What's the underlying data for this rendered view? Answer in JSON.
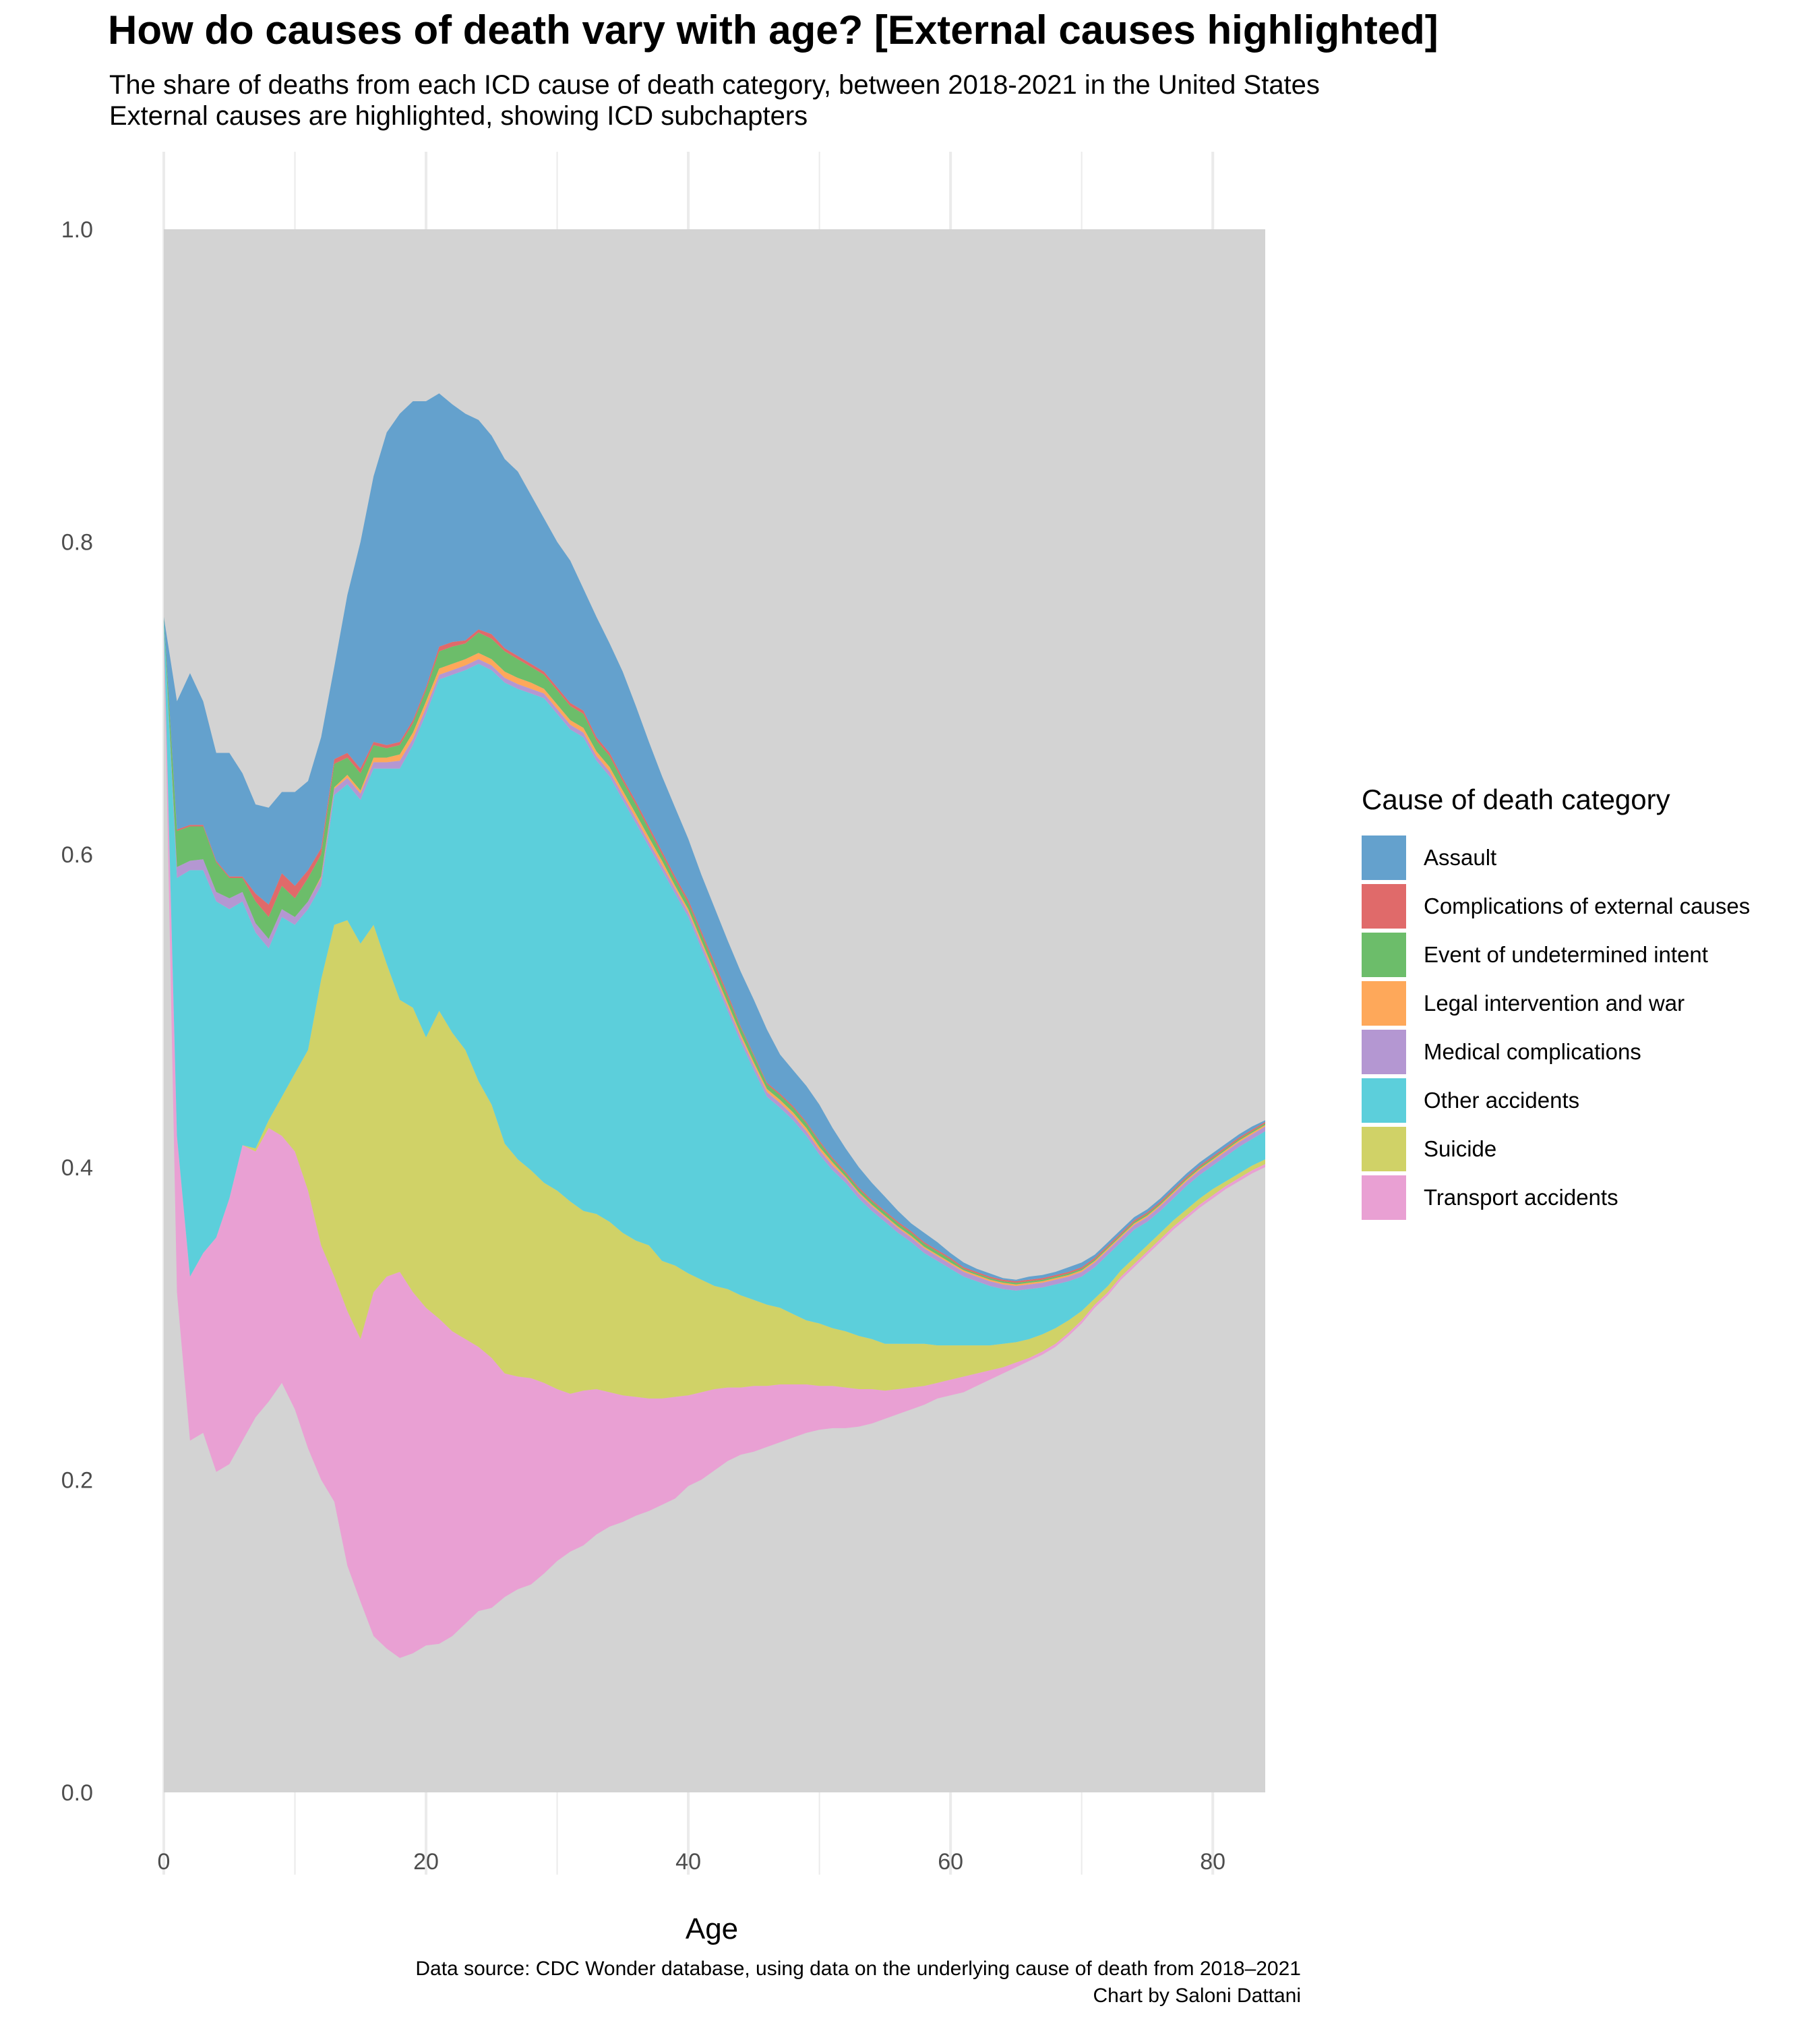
{
  "title": "How do causes of death vary with age? [External causes highlighted]",
  "subtitle_line1": "The share of deaths from each ICD cause of death category, between 2018-2021 in the United States",
  "subtitle_line2": "External causes are highlighted, showing ICD subchapters",
  "caption_line1": "Data source: CDC Wonder database, using data on the underlying cause of death from 2018–2021",
  "caption_line2": "Chart by Saloni Dattani",
  "legend": {
    "title": "Cause of death category",
    "items": [
      {
        "label": "Assault",
        "color": "#64a1cd"
      },
      {
        "label": "Complications of external causes",
        "color": "#e06a6a"
      },
      {
        "label": "Event of undetermined intent",
        "color": "#6cbd6a"
      },
      {
        "label": "Legal intervention and war",
        "color": "#fea85a"
      },
      {
        "label": "Medical complications",
        "color": "#b497d2"
      },
      {
        "label": "Other accidents",
        "color": "#5ccfdb"
      },
      {
        "label": "Suicide",
        "color": "#d0d267"
      },
      {
        "label": "Transport accidents",
        "color": "#e9a0d3"
      }
    ]
  },
  "chart_data": {
    "type": "area",
    "stacked": true,
    "xlabel": "Age",
    "ylabel": "",
    "xlim": [
      0,
      84
    ],
    "ylim": [
      0,
      1
    ],
    "x_ticks": [
      0,
      20,
      40,
      60,
      80
    ],
    "y_ticks": [
      "0.0",
      "0.2",
      "0.4",
      "0.6",
      "0.8",
      "1.0"
    ],
    "background_color": "#d3d3d3",
    "grid": true,
    "legend_position": "right",
    "note": "Values are cumulative top boundaries of each stacked band (share of deaths); bottom of Transport accidents band is the lower boundary of the highlighted area.",
    "ages": [
      0,
      1,
      2,
      3,
      4,
      5,
      6,
      7,
      8,
      9,
      10,
      11,
      12,
      13,
      14,
      15,
      16,
      17,
      18,
      19,
      20,
      21,
      22,
      23,
      24,
      25,
      26,
      27,
      28,
      29,
      30,
      31,
      32,
      33,
      34,
      35,
      36,
      37,
      38,
      39,
      40,
      41,
      42,
      43,
      44,
      45,
      46,
      47,
      48,
      49,
      50,
      51,
      52,
      53,
      54,
      55,
      56,
      57,
      58,
      59,
      60,
      61,
      62,
      63,
      64,
      65,
      66,
      67,
      68,
      69,
      70,
      71,
      72,
      73,
      74,
      75,
      76,
      77,
      78,
      79,
      80,
      81,
      82,
      83,
      84
    ],
    "base": [
      0.74,
      0.32,
      0.225,
      0.23,
      0.205,
      0.21,
      0.225,
      0.24,
      0.25,
      0.262,
      0.245,
      0.22,
      0.2,
      0.186,
      0.145,
      0.122,
      0.1,
      0.092,
      0.086,
      0.089,
      0.094,
      0.095,
      0.1,
      0.108,
      0.116,
      0.118,
      0.125,
      0.13,
      0.133,
      0.14,
      0.148,
      0.154,
      0.158,
      0.165,
      0.17,
      0.173,
      0.177,
      0.18,
      0.184,
      0.188,
      0.196,
      0.2,
      0.206,
      0.212,
      0.216,
      0.218,
      0.221,
      0.224,
      0.227,
      0.23,
      0.232,
      0.233,
      0.233,
      0.234,
      0.236,
      0.239,
      0.242,
      0.245,
      0.248,
      0.252,
      0.254,
      0.256,
      0.26,
      0.264,
      0.268,
      0.272,
      0.276,
      0.28,
      0.285,
      0.292,
      0.3,
      0.31,
      0.318,
      0.328,
      0.336,
      0.344,
      0.352,
      0.36,
      0.367,
      0.374,
      0.38,
      0.386,
      0.391,
      0.396,
      0.4
    ],
    "series": [
      {
        "name": "Transport accidents",
        "upper": [
          0.745,
          0.42,
          0.33,
          0.345,
          0.355,
          0.38,
          0.414,
          0.41,
          0.425,
          0.42,
          0.41,
          0.385,
          0.35,
          0.33,
          0.308,
          0.29,
          0.32,
          0.33,
          0.333,
          0.32,
          0.31,
          0.303,
          0.295,
          0.29,
          0.285,
          0.278,
          0.268,
          0.266,
          0.265,
          0.262,
          0.258,
          0.255,
          0.257,
          0.258,
          0.256,
          0.254,
          0.253,
          0.252,
          0.252,
          0.253,
          0.254,
          0.256,
          0.258,
          0.259,
          0.259,
          0.26,
          0.26,
          0.261,
          0.261,
          0.261,
          0.26,
          0.26,
          0.259,
          0.258,
          0.258,
          0.257,
          0.258,
          0.259,
          0.26,
          0.262,
          0.264,
          0.266,
          0.268,
          0.27,
          0.272,
          0.275,
          0.278,
          0.282,
          0.287,
          0.294,
          0.302,
          0.312,
          0.32,
          0.33,
          0.338,
          0.346,
          0.354,
          0.362,
          0.369,
          0.376,
          0.382,
          0.388,
          0.393,
          0.398,
          0.402
        ]
      },
      {
        "name": "Suicide",
        "upper": [
          0.746,
          0.42,
          0.33,
          0.345,
          0.355,
          0.38,
          0.414,
          0.412,
          0.43,
          0.445,
          0.46,
          0.475,
          0.52,
          0.555,
          0.558,
          0.543,
          0.555,
          0.53,
          0.507,
          0.502,
          0.483,
          0.5,
          0.486,
          0.475,
          0.455,
          0.44,
          0.415,
          0.405,
          0.398,
          0.39,
          0.385,
          0.378,
          0.372,
          0.37,
          0.365,
          0.358,
          0.353,
          0.35,
          0.34,
          0.337,
          0.332,
          0.328,
          0.324,
          0.322,
          0.318,
          0.315,
          0.312,
          0.31,
          0.306,
          0.302,
          0.3,
          0.297,
          0.295,
          0.292,
          0.29,
          0.287,
          0.287,
          0.287,
          0.287,
          0.286,
          0.286,
          0.286,
          0.286,
          0.286,
          0.287,
          0.288,
          0.29,
          0.293,
          0.297,
          0.302,
          0.308,
          0.316,
          0.324,
          0.334,
          0.342,
          0.35,
          0.358,
          0.366,
          0.373,
          0.38,
          0.386,
          0.391,
          0.396,
          0.401,
          0.405
        ]
      },
      {
        "name": "Other accidents",
        "upper": [
          0.75,
          0.585,
          0.59,
          0.59,
          0.57,
          0.565,
          0.57,
          0.55,
          0.54,
          0.56,
          0.555,
          0.565,
          0.58,
          0.638,
          0.645,
          0.635,
          0.655,
          0.655,
          0.655,
          0.67,
          0.69,
          0.712,
          0.715,
          0.718,
          0.722,
          0.718,
          0.71,
          0.706,
          0.703,
          0.7,
          0.69,
          0.68,
          0.675,
          0.66,
          0.65,
          0.635,
          0.62,
          0.605,
          0.59,
          0.575,
          0.56,
          0.54,
          0.52,
          0.5,
          0.48,
          0.462,
          0.445,
          0.438,
          0.43,
          0.42,
          0.408,
          0.398,
          0.39,
          0.38,
          0.372,
          0.365,
          0.358,
          0.352,
          0.345,
          0.34,
          0.335,
          0.33,
          0.327,
          0.324,
          0.322,
          0.321,
          0.322,
          0.323,
          0.325,
          0.327,
          0.33,
          0.336,
          0.344,
          0.352,
          0.36,
          0.365,
          0.372,
          0.38,
          0.388,
          0.395,
          0.401,
          0.407,
          0.413,
          0.418,
          0.423
        ]
      },
      {
        "name": "Medical complications",
        "upper": [
          0.75,
          0.592,
          0.596,
          0.597,
          0.576,
          0.572,
          0.576,
          0.556,
          0.546,
          0.565,
          0.56,
          0.57,
          0.585,
          0.642,
          0.649,
          0.639,
          0.659,
          0.659,
          0.66,
          0.674,
          0.694,
          0.715,
          0.718,
          0.721,
          0.725,
          0.721,
          0.713,
          0.709,
          0.706,
          0.703,
          0.693,
          0.683,
          0.678,
          0.663,
          0.653,
          0.638,
          0.623,
          0.608,
          0.593,
          0.578,
          0.563,
          0.543,
          0.523,
          0.503,
          0.483,
          0.465,
          0.448,
          0.441,
          0.433,
          0.423,
          0.411,
          0.401,
          0.393,
          0.383,
          0.375,
          0.368,
          0.361,
          0.355,
          0.348,
          0.343,
          0.338,
          0.333,
          0.33,
          0.327,
          0.325,
          0.324,
          0.325,
          0.326,
          0.328,
          0.33,
          0.333,
          0.339,
          0.347,
          0.355,
          0.363,
          0.368,
          0.375,
          0.383,
          0.391,
          0.398,
          0.404,
          0.41,
          0.416,
          0.421,
          0.426
        ]
      },
      {
        "name": "Legal intervention and war",
        "upper": [
          0.75,
          0.592,
          0.596,
          0.597,
          0.576,
          0.572,
          0.576,
          0.556,
          0.546,
          0.565,
          0.56,
          0.57,
          0.586,
          0.643,
          0.651,
          0.641,
          0.662,
          0.662,
          0.664,
          0.678,
          0.698,
          0.719,
          0.722,
          0.725,
          0.729,
          0.725,
          0.717,
          0.713,
          0.71,
          0.706,
          0.696,
          0.686,
          0.681,
          0.666,
          0.656,
          0.641,
          0.626,
          0.611,
          0.596,
          0.58,
          0.565,
          0.545,
          0.525,
          0.505,
          0.485,
          0.467,
          0.45,
          0.443,
          0.435,
          0.425,
          0.413,
          0.403,
          0.394,
          0.384,
          0.376,
          0.369,
          0.362,
          0.356,
          0.349,
          0.344,
          0.339,
          0.334,
          0.331,
          0.328,
          0.326,
          0.325,
          0.326,
          0.327,
          0.329,
          0.331,
          0.334,
          0.34,
          0.348,
          0.356,
          0.364,
          0.369,
          0.376,
          0.384,
          0.392,
          0.399,
          0.405,
          0.411,
          0.417,
          0.422,
          0.427
        ]
      },
      {
        "name": "Event of undetermined intent",
        "upper": [
          0.752,
          0.615,
          0.618,
          0.618,
          0.595,
          0.585,
          0.585,
          0.57,
          0.56,
          0.58,
          0.572,
          0.585,
          0.6,
          0.658,
          0.662,
          0.652,
          0.67,
          0.668,
          0.67,
          0.684,
          0.705,
          0.73,
          0.733,
          0.735,
          0.742,
          0.738,
          0.73,
          0.725,
          0.72,
          0.715,
          0.705,
          0.695,
          0.69,
          0.673,
          0.663,
          0.647,
          0.632,
          0.616,
          0.6,
          0.584,
          0.569,
          0.549,
          0.529,
          0.509,
          0.489,
          0.471,
          0.453,
          0.446,
          0.438,
          0.428,
          0.416,
          0.405,
          0.396,
          0.386,
          0.378,
          0.371,
          0.364,
          0.358,
          0.351,
          0.346,
          0.341,
          0.335,
          0.332,
          0.329,
          0.327,
          0.326,
          0.327,
          0.328,
          0.33,
          0.332,
          0.335,
          0.341,
          0.349,
          0.357,
          0.365,
          0.37,
          0.377,
          0.385,
          0.393,
          0.4,
          0.406,
          0.412,
          0.418,
          0.423,
          0.428
        ]
      },
      {
        "name": "Complications of external causes",
        "upper": [
          0.752,
          0.616,
          0.619,
          0.619,
          0.596,
          0.586,
          0.586,
          0.575,
          0.568,
          0.588,
          0.58,
          0.59,
          0.604,
          0.661,
          0.665,
          0.655,
          0.672,
          0.67,
          0.672,
          0.686,
          0.707,
          0.733,
          0.736,
          0.737,
          0.744,
          0.741,
          0.732,
          0.727,
          0.722,
          0.717,
          0.707,
          0.697,
          0.692,
          0.675,
          0.665,
          0.649,
          0.634,
          0.618,
          0.602,
          0.586,
          0.571,
          0.551,
          0.531,
          0.511,
          0.49,
          0.472,
          0.454,
          0.447,
          0.439,
          0.429,
          0.417,
          0.406,
          0.397,
          0.387,
          0.379,
          0.372,
          0.365,
          0.359,
          0.352,
          0.347,
          0.342,
          0.336,
          0.333,
          0.33,
          0.328,
          0.327,
          0.328,
          0.329,
          0.331,
          0.333,
          0.336,
          0.342,
          0.35,
          0.358,
          0.366,
          0.371,
          0.378,
          0.386,
          0.394,
          0.401,
          0.407,
          0.413,
          0.419,
          0.424,
          0.429
        ]
      },
      {
        "name": "Assault",
        "upper": [
          0.752,
          0.698,
          0.716,
          0.698,
          0.665,
          0.665,
          0.652,
          0.632,
          0.63,
          0.64,
          0.64,
          0.647,
          0.675,
          0.72,
          0.766,
          0.8,
          0.842,
          0.87,
          0.882,
          0.89,
          0.89,
          0.895,
          0.888,
          0.882,
          0.878,
          0.868,
          0.853,
          0.845,
          0.83,
          0.815,
          0.8,
          0.788,
          0.77,
          0.752,
          0.735,
          0.717,
          0.695,
          0.672,
          0.65,
          0.63,
          0.61,
          0.587,
          0.566,
          0.545,
          0.525,
          0.507,
          0.488,
          0.472,
          0.462,
          0.452,
          0.44,
          0.425,
          0.412,
          0.4,
          0.39,
          0.381,
          0.372,
          0.364,
          0.358,
          0.352,
          0.345,
          0.339,
          0.335,
          0.332,
          0.329,
          0.328,
          0.33,
          0.331,
          0.333,
          0.336,
          0.339,
          0.344,
          0.352,
          0.36,
          0.368,
          0.373,
          0.38,
          0.388,
          0.396,
          0.403,
          0.409,
          0.415,
          0.421,
          0.426,
          0.43
        ]
      }
    ]
  }
}
